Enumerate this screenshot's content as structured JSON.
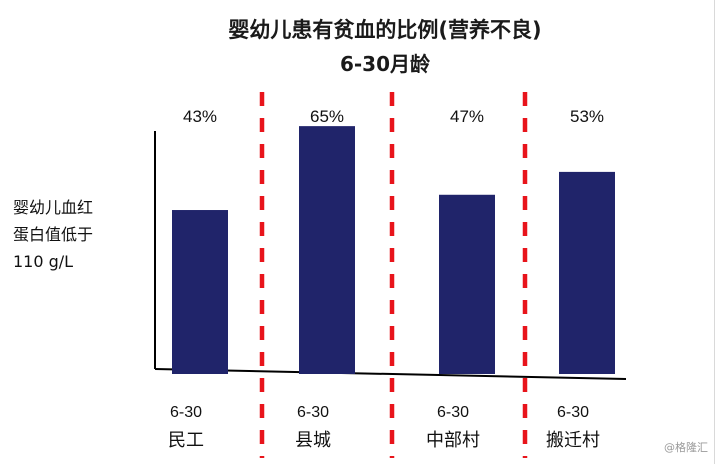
{
  "chart_data": {
    "type": "bar",
    "title": "婴幼儿患有贫血的比例(营养不良)",
    "subtitle": "6-30月龄",
    "ylabel": "婴幼儿血红\n蛋白值低于\n110 g/L",
    "categories": [
      {
        "age": "6-30",
        "name": "民工"
      },
      {
        "age": "6-30",
        "name": "县城"
      },
      {
        "age": "6-30",
        "name": "中部村"
      },
      {
        "age": "6-30",
        "name": "搬迁村"
      }
    ],
    "values": [
      43,
      65,
      47,
      53
    ],
    "value_labels": [
      "43%",
      "65%",
      "47%",
      "53%"
    ],
    "ylim": [
      0,
      75
    ],
    "grid": false,
    "colors": {
      "bar": "#20246a",
      "divider": "#e8141b",
      "axis": "#000000"
    }
  },
  "watermark": "@格隆汇"
}
